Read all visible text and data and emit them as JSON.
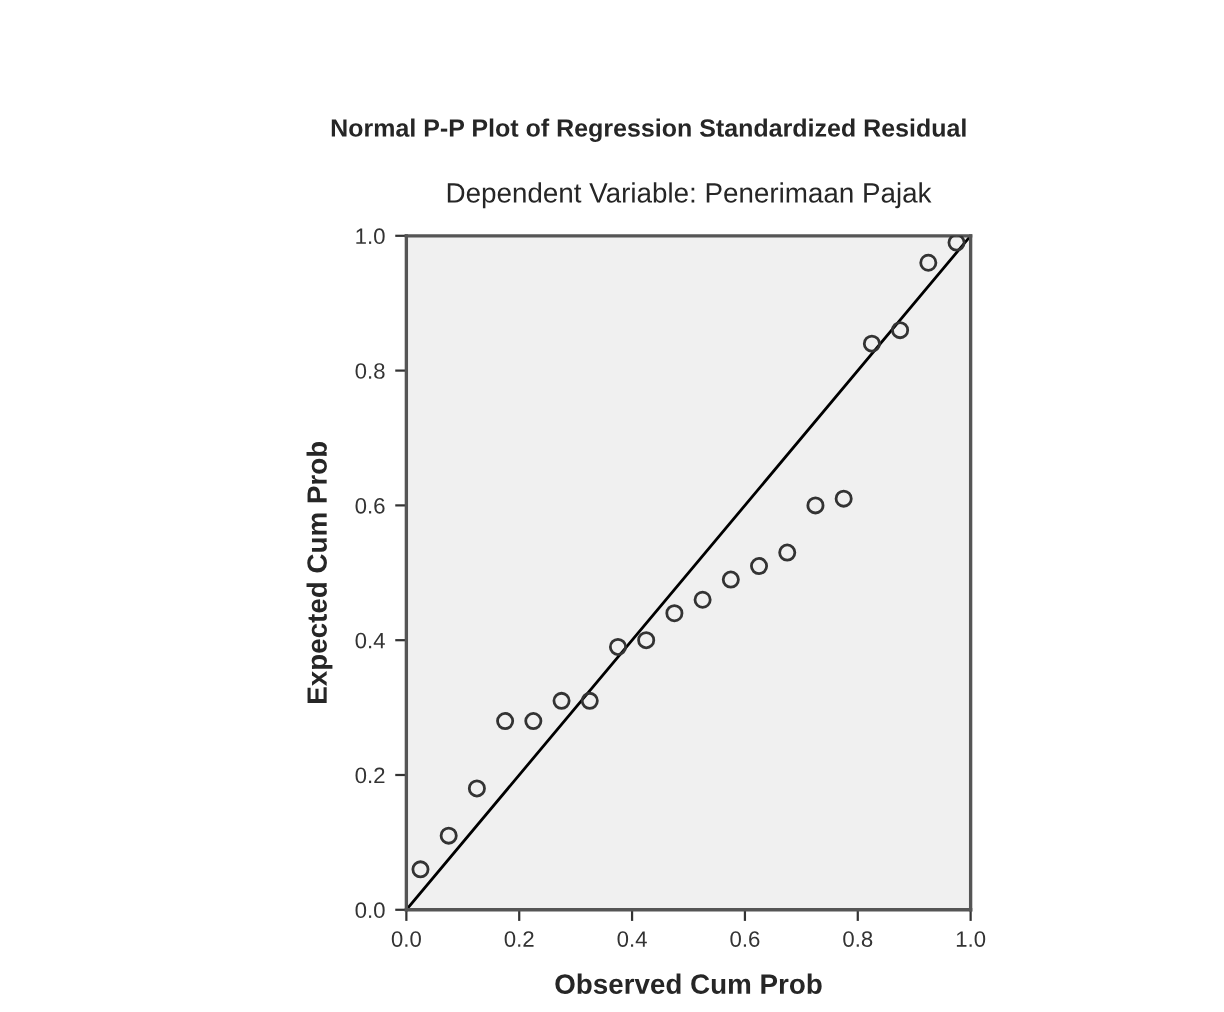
{
  "chart_data": {
    "type": "scatter",
    "title": "Normal P-P Plot of Regression Standardized Residual",
    "subtitle": "Dependent Variable: Penerimaan Pajak",
    "xlabel": "Observed Cum Prob",
    "ylabel": "Expected Cum Prob",
    "xlim": [
      0.0,
      1.0
    ],
    "ylim": [
      0.0,
      1.0
    ],
    "xticks": [
      {
        "value": 0.0,
        "label": "0.0"
      },
      0.2,
      0.4,
      0.6,
      0.8,
      {
        "value": 1.0,
        "label": "1.0"
      }
    ],
    "yticks": [
      {
        "value": 0.0,
        "label": "0.0"
      },
      0.2,
      0.4,
      0.6,
      0.8,
      {
        "value": 1.0,
        "label": "1.0"
      }
    ],
    "grid": false,
    "legend": false,
    "series": [
      {
        "marker": "circle",
        "color": "#333333",
        "x": [
          0.025,
          0.075,
          0.125,
          0.175,
          0.225,
          0.275,
          0.325,
          0.375,
          0.425,
          0.475,
          0.525,
          0.575,
          0.625,
          0.675,
          0.725,
          0.775,
          0.825,
          0.875,
          0.925,
          0.975
        ],
        "values": [
          0.06,
          0.11,
          0.18,
          0.28,
          0.28,
          0.31,
          0.31,
          0.39,
          0.4,
          0.44,
          0.46,
          0.49,
          0.51,
          0.53,
          0.6,
          0.61,
          0.84,
          0.86,
          0.96,
          0.99
        ]
      },
      {
        "type": "line",
        "marker": "none",
        "color": "#000000",
        "x": [
          0.0,
          1.0
        ],
        "values": [
          0.0,
          1.0
        ]
      }
    ]
  }
}
